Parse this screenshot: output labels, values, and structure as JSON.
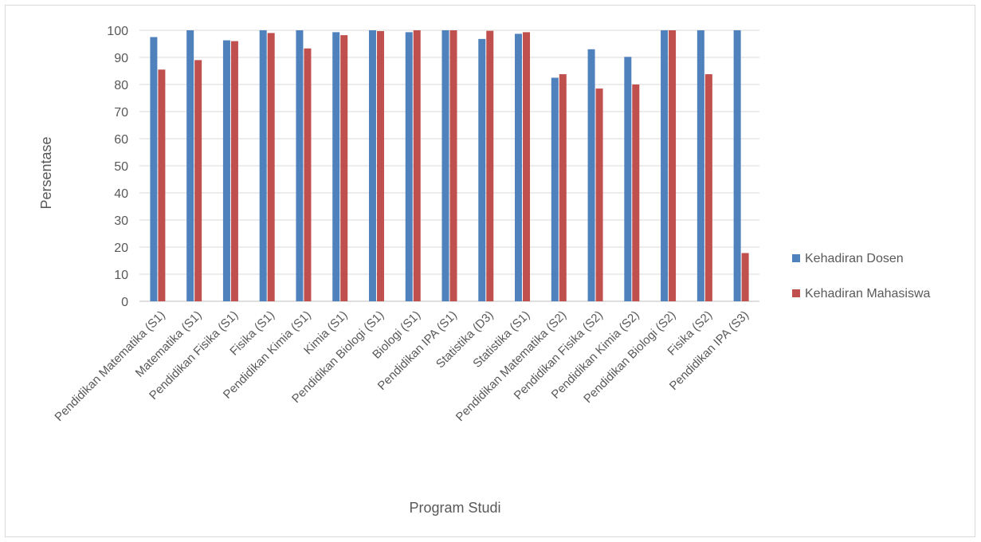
{
  "colors": {
    "series_dosen": "#4f81bd",
    "series_mahasiswa": "#c0504d",
    "gridline": "#d9d9d9",
    "axis": "#bfbfbf",
    "text": "#595959"
  },
  "chart_data": {
    "type": "bar",
    "title": "",
    "xlabel": "Program Studi",
    "ylabel": "Persentase",
    "ylim": [
      0,
      100
    ],
    "yticks": [
      0,
      10,
      20,
      30,
      40,
      50,
      60,
      70,
      80,
      90,
      100
    ],
    "grid": true,
    "legend_position": "right",
    "categories": [
      "Pendidikan Matematika (S1)",
      "Matematika (S1)",
      "Pendidikan Fisika (S1)",
      "Fisika (S1)",
      "Pendidikan Kimia (S1)",
      "Kimia (S1)",
      "Pendidikan Biologi (S1)",
      "Biologi (S1)",
      "Pendidikan IPA (S1)",
      "Statistika (D3)",
      "Statistika (S1)",
      "Pendidikan Matematika (S2)",
      "Pendidikan Fisika (S2)",
      "Pendidikan Kimia (S2)",
      "Pendidikan Biologi (S2)",
      "Fisika (S2)",
      "Pendidikan IPA (S3)"
    ],
    "series": [
      {
        "name": "Kehadiran Dosen",
        "values": [
          97.5,
          100,
          96.3,
          100,
          100,
          99.3,
          100,
          99.3,
          100,
          96.8,
          98.7,
          82.5,
          93,
          90.2,
          100,
          100,
          100
        ]
      },
      {
        "name": "Kehadiran Mahasiswa",
        "values": [
          85.5,
          89,
          96,
          99,
          93.3,
          98.2,
          99.7,
          100,
          100,
          99.8,
          99.3,
          83.8,
          78.5,
          80,
          100,
          83.8,
          17.8
        ]
      }
    ]
  }
}
